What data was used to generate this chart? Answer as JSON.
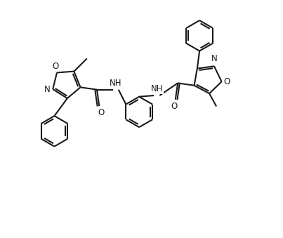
{
  "background_color": "#ffffff",
  "line_color": "#1a1a1a",
  "line_width": 1.5,
  "font_size_atom": 8.5,
  "figsize": [
    4.03,
    3.39
  ],
  "dpi": 100,
  "xlim": [
    -1.0,
    11.0
  ],
  "ylim": [
    -1.5,
    8.5
  ]
}
